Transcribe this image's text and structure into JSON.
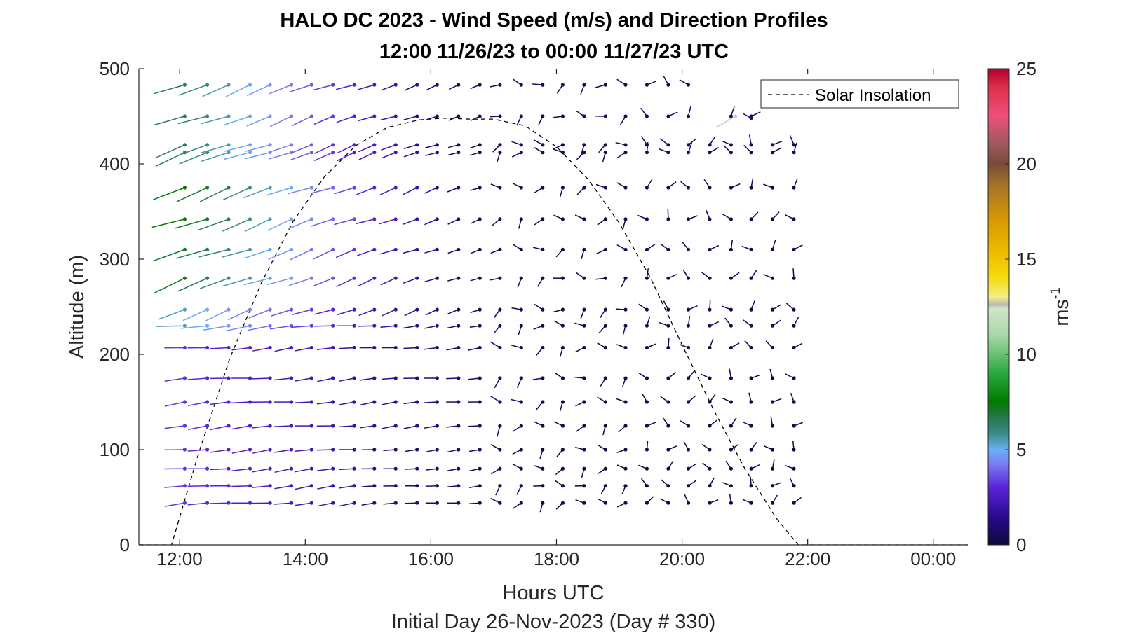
{
  "chart_data": {
    "type": "quiver",
    "title": "HALO DC 2023 - Wind Speed (m/s) and Direction Profiles",
    "subtitle": "12:00 11/26/23 to 00:00 11/27/23  UTC",
    "xlabel": "Hours UTC",
    "ylabel": "Altitude (m)",
    "footer": "Initial Day 26-Nov-2023 (Day # 330)",
    "xlim": [
      11.35,
      24.55
    ],
    "ylim": [
      0,
      500
    ],
    "x_ticks": [
      12,
      14,
      16,
      18,
      20,
      22,
      24
    ],
    "x_tick_labels": [
      "12:00",
      "14:00",
      "16:00",
      "18:00",
      "20:00",
      "22:00",
      "00:00"
    ],
    "y_ticks": [
      0,
      100,
      200,
      300,
      400,
      500
    ],
    "y_tick_labels": [
      "0",
      "100",
      "200",
      "300",
      "400",
      "500"
    ],
    "colorbar": {
      "label": "ms",
      "label_superscript": "-1",
      "range": [
        0,
        25
      ],
      "ticks": [
        0,
        5,
        10,
        15,
        20,
        25
      ],
      "tick_labels": [
        "0",
        "5",
        "10",
        "15",
        "20",
        "25"
      ],
      "stops": [
        {
          "v": 0,
          "color": "#0b0b3b"
        },
        {
          "v": 1.5,
          "color": "#2a0a8e"
        },
        {
          "v": 3,
          "color": "#5a22d8"
        },
        {
          "v": 4.2,
          "color": "#7a7af0"
        },
        {
          "v": 5,
          "color": "#6ab0f5"
        },
        {
          "v": 5.8,
          "color": "#3d8c8c"
        },
        {
          "v": 6.5,
          "color": "#2a7a5a"
        },
        {
          "v": 7.5,
          "color": "#007a00"
        },
        {
          "v": 9,
          "color": "#2aa83e"
        },
        {
          "v": 11,
          "color": "#a8d8a8"
        },
        {
          "v": 12.4,
          "color": "#cfe6c6"
        },
        {
          "v": 12.6,
          "color": "#b8b8b8"
        },
        {
          "v": 13,
          "color": "#f3ee8a"
        },
        {
          "v": 14,
          "color": "#f4dc10"
        },
        {
          "v": 15,
          "color": "#f0c400"
        },
        {
          "v": 17,
          "color": "#d99a00"
        },
        {
          "v": 19,
          "color": "#a0702a"
        },
        {
          "v": 20,
          "color": "#7a4a3a"
        },
        {
          "v": 21,
          "color": "#9a5a5a"
        },
        {
          "v": 22.5,
          "color": "#ee4f7d"
        },
        {
          "v": 24,
          "color": "#e0304a"
        },
        {
          "v": 25,
          "color": "#b0002a"
        }
      ]
    },
    "legend": {
      "entries": [
        "Solar Insolation"
      ],
      "placement": "top-right"
    },
    "solar_insolation": {
      "style": "dashed",
      "color": "#000000",
      "points": [
        [
          11.35,
          0
        ],
        [
          11.87,
          0
        ],
        [
          12.3,
          96
        ],
        [
          12.8,
          196
        ],
        [
          13.3,
          275
        ],
        [
          13.8,
          339
        ],
        [
          14.3,
          386
        ],
        [
          14.8,
          419
        ],
        [
          15.3,
          438
        ],
        [
          15.8,
          446
        ],
        [
          16.2,
          448
        ],
        [
          16.6,
          447
        ],
        [
          17.0,
          447
        ],
        [
          17.5,
          440
        ],
        [
          18.0,
          418
        ],
        [
          18.5,
          384
        ],
        [
          19.0,
          338
        ],
        [
          19.5,
          280
        ],
        [
          20.0,
          210
        ],
        [
          20.5,
          142
        ],
        [
          21.0,
          80
        ],
        [
          21.5,
          28
        ],
        [
          21.85,
          0
        ],
        [
          24.55,
          0
        ]
      ]
    },
    "wind_field": {
      "description": "wind barbs: dot at (time, altitude), line pointing upwind; speed sets color and length",
      "altitudes": [
        44,
        62,
        80,
        100,
        125,
        150,
        175,
        207,
        230,
        247,
        280,
        310,
        342,
        375,
        412,
        420,
        450,
        483
      ],
      "times": [
        12.08,
        12.44,
        12.78,
        13.12,
        13.44,
        13.78,
        14.1,
        14.44,
        14.78,
        15.1,
        15.44,
        15.78,
        16.1,
        16.44,
        16.78,
        17.1,
        17.44,
        17.78,
        18.1,
        18.44,
        18.78,
        19.1,
        19.44,
        19.78,
        20.1,
        20.44,
        20.78,
        21.1,
        21.44,
        21.78
      ]
    }
  }
}
